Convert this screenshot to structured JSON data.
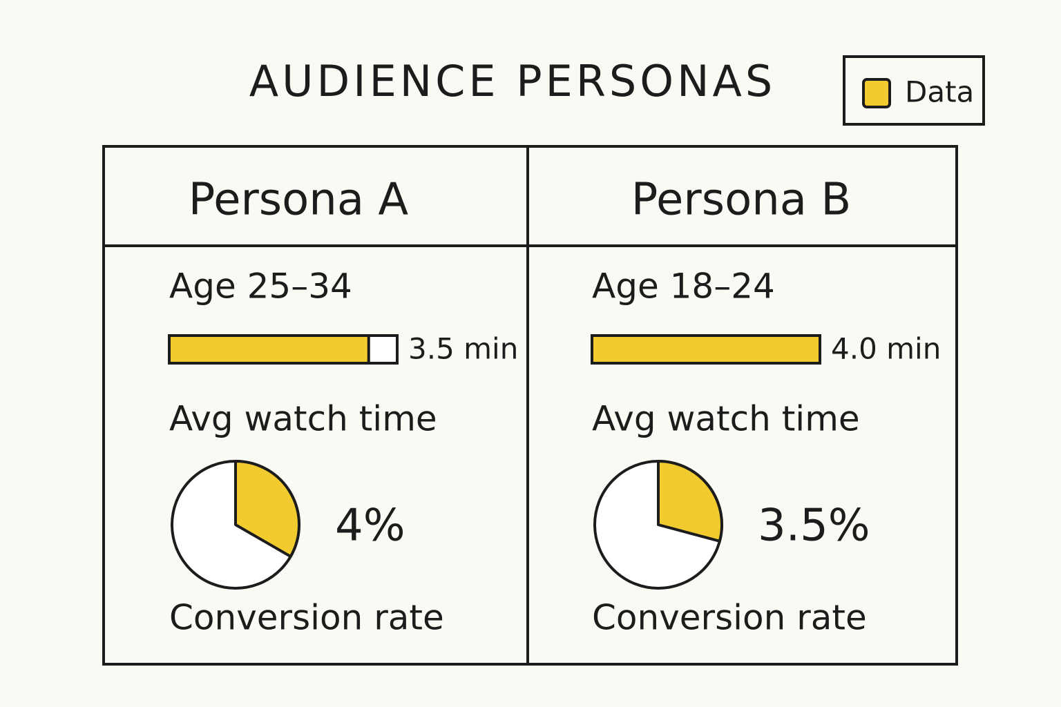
{
  "title": "AUDIENCE PERSONAS",
  "legend": {
    "label": "Data",
    "color": "#f2cb2e"
  },
  "watch_time_lim": [
    0,
    4
  ],
  "conversion_lim": [
    0,
    12
  ],
  "personas": [
    {
      "name": "Persona A",
      "age": "Age 25–34",
      "watch_time": 3.5,
      "watch_time_label": "3.5 min",
      "watch_time_caption": "Avg watch time",
      "conversion": 4,
      "conversion_label": "4%",
      "conversion_caption": "Conversion rate"
    },
    {
      "name": "Persona B",
      "age": "Age 18–24",
      "watch_time": 4.0,
      "watch_time_label": "4.0 min",
      "watch_time_caption": "Avg watch time",
      "conversion": 3.5,
      "conversion_label": "3.5%",
      "conversion_caption": "Conversion rate"
    }
  ]
}
